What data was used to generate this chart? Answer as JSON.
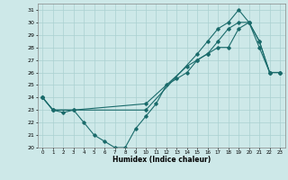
{
  "title": "",
  "xlabel": "Humidex (Indice chaleur)",
  "xlim": [
    -0.5,
    23.5
  ],
  "ylim": [
    20,
    31.5
  ],
  "xticks": [
    0,
    1,
    2,
    3,
    4,
    5,
    6,
    7,
    8,
    9,
    10,
    11,
    12,
    13,
    14,
    15,
    16,
    17,
    18,
    19,
    20,
    21,
    22,
    23
  ],
  "yticks": [
    20,
    21,
    22,
    23,
    24,
    25,
    26,
    27,
    28,
    29,
    30,
    31
  ],
  "bg_color": "#cde8e8",
  "grid_color": "#aad0d0",
  "line_color": "#1a6b6b",
  "line1_x": [
    0,
    1,
    2,
    3,
    4,
    5,
    6,
    7,
    8,
    9,
    10,
    11,
    12,
    13,
    14,
    15,
    16,
    17,
    18,
    19,
    20,
    21,
    22,
    23
  ],
  "line1_y": [
    24,
    23,
    22.8,
    23,
    22,
    21,
    20.5,
    20,
    20,
    21.5,
    22.5,
    23.5,
    25,
    25.5,
    26,
    27,
    27.5,
    28,
    28,
    29.5,
    30,
    28,
    26,
    26
  ],
  "line2_x": [
    0,
    1,
    3,
    10,
    14,
    15,
    16,
    17,
    18,
    19,
    20,
    21,
    22,
    23
  ],
  "line2_y": [
    24,
    23,
    23,
    23.5,
    26.5,
    27,
    27.5,
    28.5,
    29.5,
    30,
    30,
    28.5,
    26,
    26
  ],
  "line3_x": [
    0,
    1,
    10,
    15,
    16,
    17,
    18,
    19,
    20,
    21,
    22,
    23
  ],
  "line3_y": [
    24,
    23,
    23,
    27.5,
    28.5,
    29.5,
    30,
    31,
    30,
    28.5,
    26,
    26
  ]
}
